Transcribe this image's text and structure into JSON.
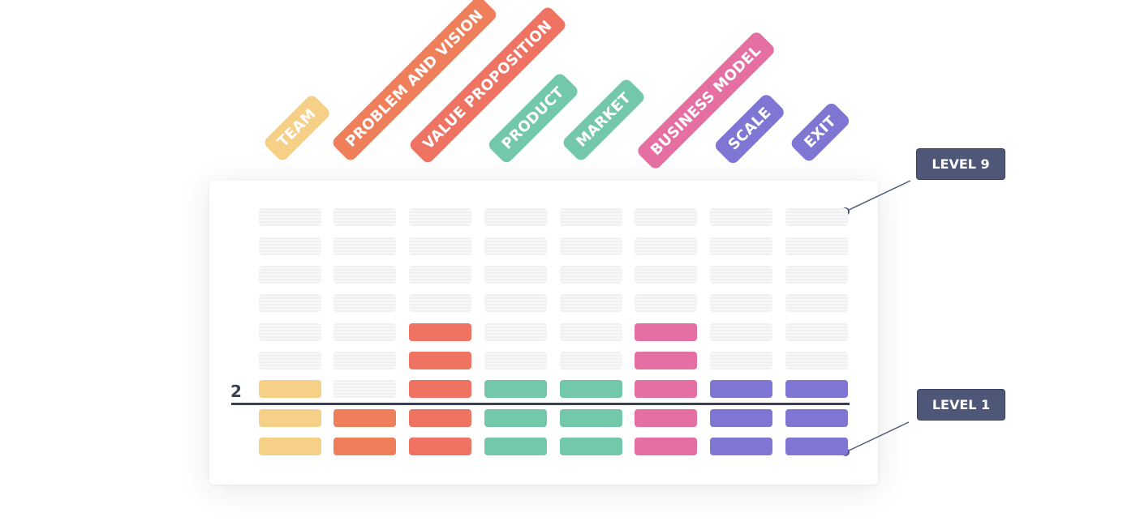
{
  "categories": [
    {
      "label": "TEAM",
      "color": "#f7d088",
      "filled_levels": 3
    },
    {
      "label": "PROBLEM AND VISION",
      "color": "#ef7f5a",
      "filled_levels": 2
    },
    {
      "label": "VALUE PROPOSITION",
      "color": "#ee7362",
      "filled_levels": 5
    },
    {
      "label": "PRODUCT",
      "color": "#72c8a9",
      "filled_levels": 3
    },
    {
      "label": "MARKET",
      "color": "#72c8a9",
      "filled_levels": 3
    },
    {
      "label": "BUSINESS MODEL",
      "color": "#e56fa2",
      "filled_levels": 5
    },
    {
      "label": "SCALE",
      "color": "#7f76d4",
      "filled_levels": 3
    },
    {
      "label": "EXIT",
      "color": "#7f76d4",
      "filled_levels": 3
    }
  ],
  "level_count": 9,
  "level_top_label": "LEVEL 9",
  "level_bottom_label": "LEVEL 1",
  "threshold_label": "2",
  "line_color": "#3a3f58",
  "level_box_color": "#4f5779"
}
